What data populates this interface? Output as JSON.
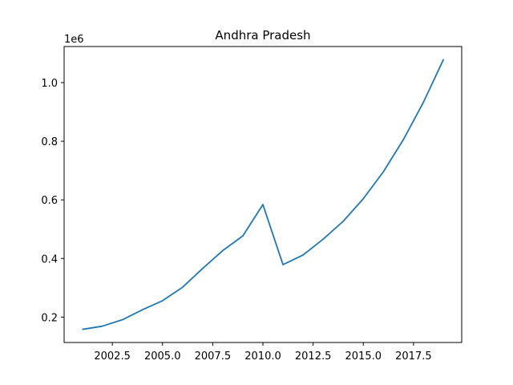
{
  "chart_data": {
    "type": "line",
    "title": "Andhra Pradesh",
    "xlabel": "",
    "ylabel": "",
    "y_offset_label": "1e6",
    "xlim": [
      2000.1,
      2019.9
    ],
    "ylim": [
      0.1134,
      1.1232
    ],
    "x_ticks": [
      2002.5,
      2005.0,
      2007.5,
      2010.0,
      2012.5,
      2015.0,
      2017.5
    ],
    "x_tick_labels": [
      "2002.5",
      "2005.0",
      "2007.5",
      "2010.0",
      "2012.5",
      "2015.0",
      "2017.5"
    ],
    "y_ticks": [
      0.2,
      0.4,
      0.6,
      0.8,
      1.0
    ],
    "y_tick_labels": [
      "0.2",
      "0.4",
      "0.6",
      "0.8",
      "1.0"
    ],
    "grid": false,
    "line_color": "#1f77b4",
    "series": [
      {
        "x": [
          2001,
          2002,
          2003,
          2004,
          2005,
          2006,
          2007,
          2008,
          2009,
          2010,
          2011,
          2012,
          2013,
          2014,
          2015,
          2016,
          2017,
          2018,
          2019
        ],
        "values": [
          0.158,
          0.169,
          0.191,
          0.225,
          0.256,
          0.302,
          0.366,
          0.427,
          0.477,
          0.584,
          0.379,
          0.412,
          0.466,
          0.527,
          0.604,
          0.696,
          0.806,
          0.934,
          1.08
        ]
      }
    ]
  }
}
